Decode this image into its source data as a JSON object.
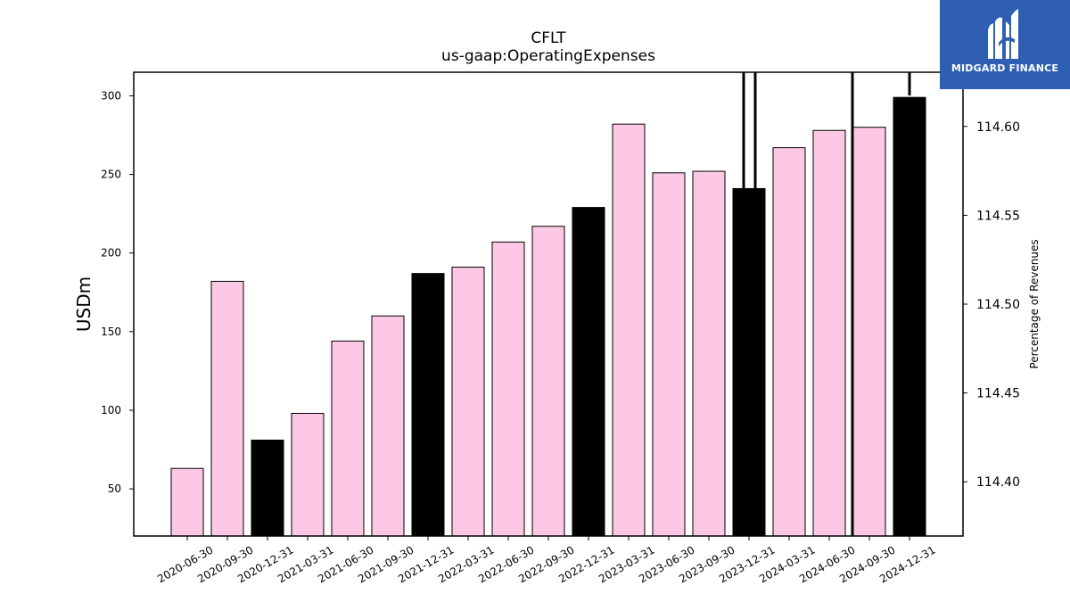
{
  "chart_data": {
    "type": "bar",
    "title": "CFLT",
    "subtitle": "us-gaap:OperatingExpenses",
    "ylabel": "USDm",
    "y2label": "Percentage of Revenues",
    "categories": [
      "2020-06-30",
      "2020-09-30",
      "2020-12-31",
      "2021-03-31",
      "2021-06-30",
      "2021-09-30",
      "2021-12-31",
      "2022-03-31",
      "2022-06-30",
      "2022-09-30",
      "2022-12-31",
      "2023-03-31",
      "2023-06-30",
      "2023-09-30",
      "2023-12-31",
      "2024-03-31",
      "2024-06-30",
      "2024-09-30",
      "2024-12-31"
    ],
    "values": [
      63,
      182,
      81,
      98,
      144,
      160,
      187,
      191,
      207,
      217,
      229,
      282,
      251,
      252,
      241,
      267,
      278,
      280,
      299
    ],
    "highlight": [
      false,
      false,
      true,
      false,
      false,
      false,
      true,
      false,
      false,
      false,
      true,
      false,
      false,
      false,
      true,
      false,
      false,
      false,
      true
    ],
    "ylim": [
      20,
      315
    ],
    "yticks": [
      50,
      100,
      150,
      200,
      250,
      300
    ],
    "y2lim": [
      114.3695,
      114.6305
    ],
    "y2ticks": [
      "114.40",
      "114.45",
      "114.50",
      "114.55",
      "114.60"
    ],
    "colors": {
      "bar": "#fcc8e3",
      "highlight": "#000000",
      "edge": "#000000"
    },
    "grid": false,
    "legend": "none"
  },
  "logo": {
    "text": "MIDGARD FINANCE",
    "color": "#2e5fb3"
  }
}
